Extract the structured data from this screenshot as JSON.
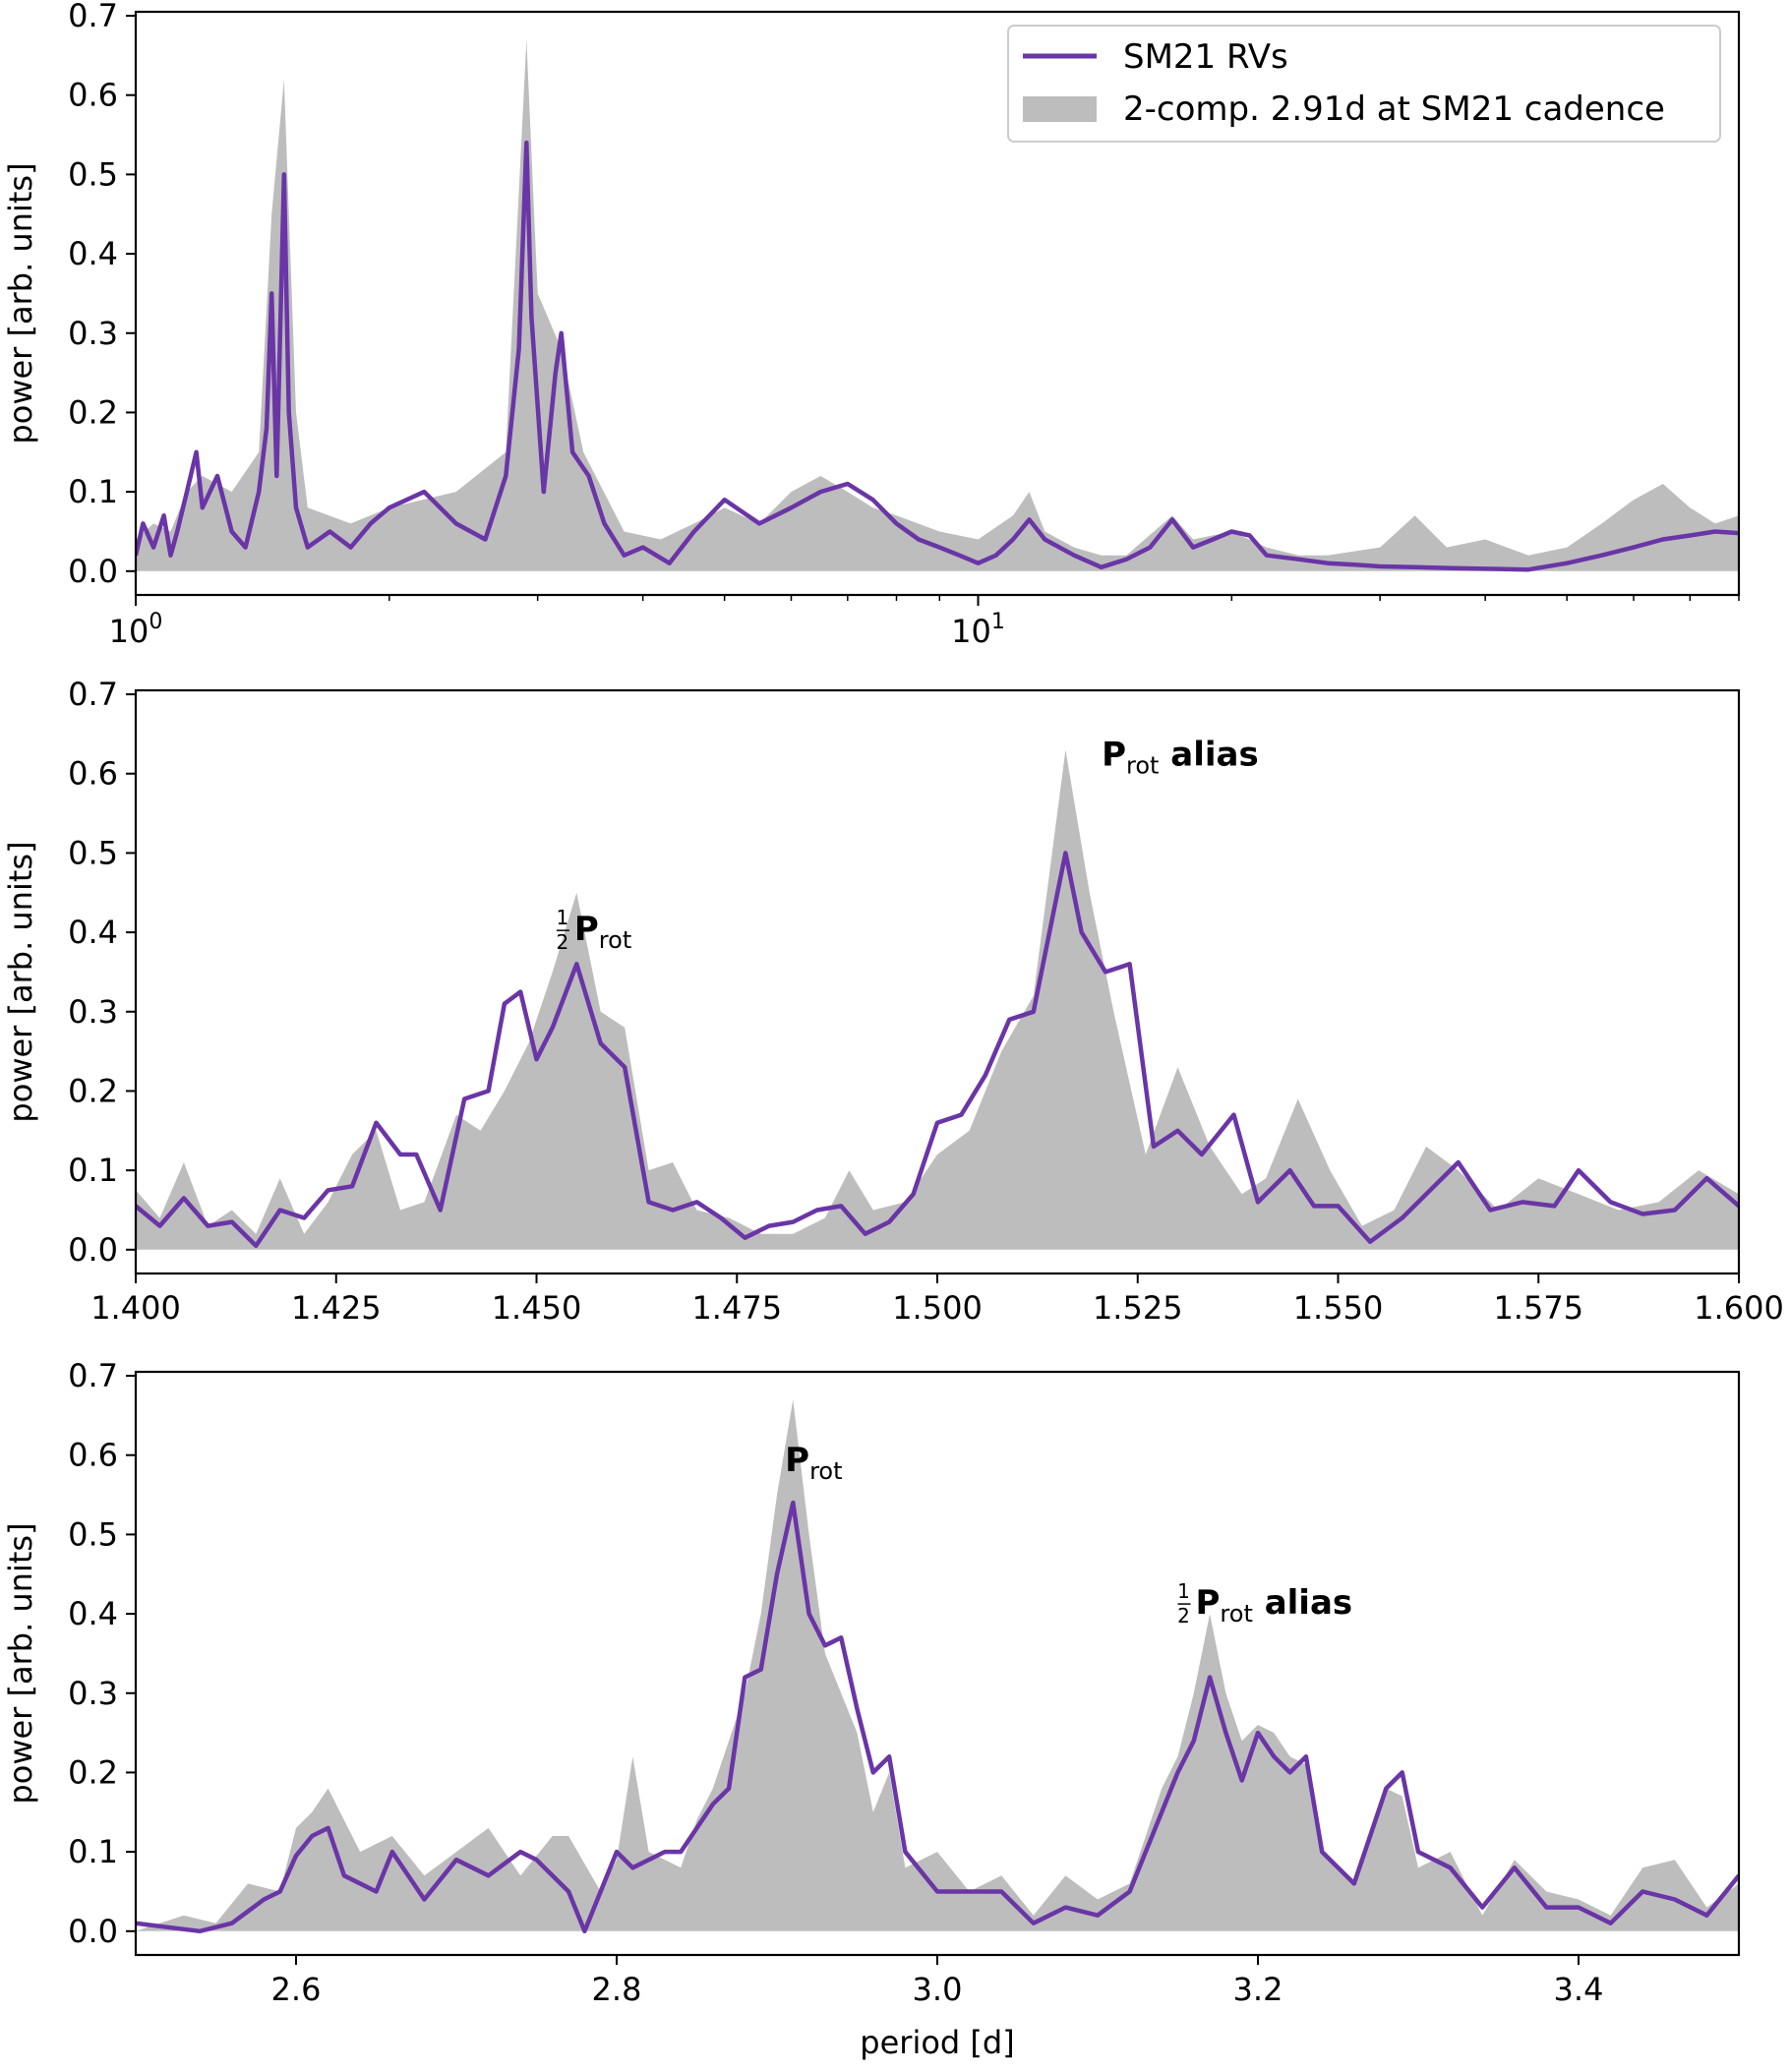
{
  "legend": {
    "line_label": "SM21 RVs",
    "fill_label": "2-comp. 2.91d at SM21 cadence",
    "line_color": "#6a35a6",
    "fill_color": "#bdbdbd"
  },
  "chart_data": [
    {
      "type": "line",
      "panel": "full periodogram",
      "xscale": "log",
      "xlim": [
        1,
        80
      ],
      "ylim": [
        -0.03,
        0.705
      ],
      "x_ticks": [
        {
          "value": 1,
          "base": "10",
          "exp": "0"
        },
        {
          "value": 10,
          "base": "10",
          "exp": "1"
        }
      ],
      "y_ticks": [
        "0.0",
        "0.1",
        "0.2",
        "0.3",
        "0.4",
        "0.5",
        "0.6",
        "0.7"
      ],
      "ylabel": "power [arb. units]",
      "xlabel": "",
      "legend_position": "upper-right",
      "series": [
        {
          "name": "SM21 RVs",
          "kind": "line",
          "x": [
            1.0,
            1.02,
            1.05,
            1.08,
            1.1,
            1.12,
            1.15,
            1.18,
            1.2,
            1.25,
            1.3,
            1.35,
            1.4,
            1.43,
            1.45,
            1.47,
            1.5,
            1.52,
            1.55,
            1.6,
            1.7,
            1.8,
            1.9,
            2.0,
            2.2,
            2.4,
            2.6,
            2.75,
            2.85,
            2.91,
            2.95,
            3.05,
            3.15,
            3.2,
            3.3,
            3.45,
            3.6,
            3.8,
            4.0,
            4.3,
            4.6,
            5.0,
            5.5,
            6.0,
            6.5,
            7.0,
            7.5,
            8.0,
            8.5,
            9.0,
            9.5,
            10.0,
            10.5,
            11.0,
            11.5,
            12.0,
            13.0,
            14.0,
            15.0,
            16.0,
            17.0,
            18.0,
            19.0,
            20.0,
            21.0,
            22.0,
            24.0,
            26.0,
            28.0,
            30.0,
            33.0,
            36.0,
            40.0,
            45.0,
            50.0,
            55.0,
            60.0,
            65.0,
            70.0,
            75.0,
            80.0
          ],
          "y": [
            0.02,
            0.06,
            0.03,
            0.07,
            0.02,
            0.05,
            0.1,
            0.15,
            0.08,
            0.12,
            0.05,
            0.03,
            0.1,
            0.18,
            0.35,
            0.12,
            0.5,
            0.2,
            0.08,
            0.03,
            0.05,
            0.03,
            0.06,
            0.08,
            0.1,
            0.06,
            0.04,
            0.12,
            0.28,
            0.54,
            0.32,
            0.1,
            0.25,
            0.3,
            0.15,
            0.12,
            0.06,
            0.02,
            0.03,
            0.01,
            0.05,
            0.09,
            0.06,
            0.08,
            0.1,
            0.11,
            0.09,
            0.06,
            0.04,
            0.03,
            0.02,
            0.01,
            0.02,
            0.04,
            0.065,
            0.04,
            0.02,
            0.005,
            0.015,
            0.03,
            0.065,
            0.03,
            0.04,
            0.05,
            0.045,
            0.02,
            0.015,
            0.01,
            0.008,
            0.006,
            0.005,
            0.004,
            0.003,
            0.002,
            0.01,
            0.02,
            0.03,
            0.04,
            0.045,
            0.05,
            0.048
          ]
        },
        {
          "name": "2-comp. 2.91d at SM21 cadence",
          "kind": "fill",
          "x": [
            1.0,
            1.05,
            1.1,
            1.15,
            1.2,
            1.3,
            1.4,
            1.45,
            1.5,
            1.55,
            1.6,
            1.8,
            2.0,
            2.4,
            2.75,
            2.91,
            3.0,
            3.2,
            3.4,
            3.8,
            4.2,
            4.6,
            5.0,
            5.5,
            6.0,
            6.5,
            7.0,
            7.5,
            8.0,
            9.0,
            10.0,
            11.0,
            11.5,
            12.0,
            13.0,
            14.0,
            15.0,
            17.0,
            18.0,
            20.0,
            22.0,
            24.0,
            26.0,
            30.0,
            33.0,
            36.0,
            40.0,
            45.0,
            50.0,
            55.0,
            60.0,
            65.0,
            70.0,
            75.0,
            80.0
          ],
          "y": [
            0.04,
            0.06,
            0.05,
            0.1,
            0.12,
            0.1,
            0.15,
            0.45,
            0.62,
            0.2,
            0.08,
            0.06,
            0.08,
            0.1,
            0.15,
            0.67,
            0.35,
            0.28,
            0.15,
            0.05,
            0.04,
            0.06,
            0.08,
            0.06,
            0.1,
            0.12,
            0.1,
            0.08,
            0.07,
            0.05,
            0.04,
            0.07,
            0.1,
            0.05,
            0.03,
            0.02,
            0.02,
            0.07,
            0.04,
            0.05,
            0.03,
            0.02,
            0.02,
            0.03,
            0.07,
            0.03,
            0.04,
            0.02,
            0.03,
            0.06,
            0.09,
            0.11,
            0.08,
            0.06,
            0.07
          ]
        }
      ]
    },
    {
      "type": "line",
      "panel": "zoom near 1.5 d",
      "xlim": [
        1.4,
        1.6
      ],
      "ylim": [
        -0.03,
        0.705
      ],
      "x_ticks": [
        "1.400",
        "1.425",
        "1.450",
        "1.475",
        "1.500",
        "1.525",
        "1.550",
        "1.575",
        "1.600"
      ],
      "y_ticks": [
        "0.0",
        "0.1",
        "0.2",
        "0.3",
        "0.4",
        "0.5",
        "0.6",
        "0.7"
      ],
      "ylabel": "power [arb. units]",
      "xlabel": "",
      "annotations": [
        {
          "text_frac_num": "1",
          "text_frac_den": "2",
          "text_main": "P",
          "text_sub": "rot",
          "text_suffix": "",
          "x": 1.4525,
          "y": 0.39
        },
        {
          "text_frac_num": "",
          "text_frac_den": "",
          "text_main": "P",
          "text_sub": "rot",
          "text_suffix": " alias",
          "x": 1.5205,
          "y": 0.61
        }
      ],
      "series": [
        {
          "name": "SM21 RVs",
          "kind": "line",
          "x": [
            1.4,
            1.403,
            1.406,
            1.409,
            1.412,
            1.415,
            1.418,
            1.421,
            1.424,
            1.427,
            1.43,
            1.433,
            1.435,
            1.438,
            1.441,
            1.444,
            1.446,
            1.448,
            1.45,
            1.452,
            1.455,
            1.458,
            1.461,
            1.464,
            1.467,
            1.47,
            1.473,
            1.476,
            1.479,
            1.482,
            1.485,
            1.488,
            1.491,
            1.494,
            1.497,
            1.5,
            1.503,
            1.506,
            1.509,
            1.512,
            1.515,
            1.516,
            1.518,
            1.521,
            1.524,
            1.527,
            1.53,
            1.533,
            1.537,
            1.54,
            1.544,
            1.547,
            1.55,
            1.554,
            1.558,
            1.561,
            1.565,
            1.569,
            1.573,
            1.577,
            1.58,
            1.584,
            1.588,
            1.592,
            1.596,
            1.6
          ],
          "y": [
            0.055,
            0.03,
            0.065,
            0.03,
            0.035,
            0.005,
            0.05,
            0.04,
            0.075,
            0.08,
            0.16,
            0.12,
            0.12,
            0.05,
            0.19,
            0.2,
            0.31,
            0.325,
            0.24,
            0.28,
            0.36,
            0.26,
            0.23,
            0.06,
            0.05,
            0.06,
            0.04,
            0.015,
            0.03,
            0.035,
            0.05,
            0.055,
            0.02,
            0.035,
            0.07,
            0.16,
            0.17,
            0.22,
            0.29,
            0.3,
            0.45,
            0.5,
            0.4,
            0.35,
            0.36,
            0.13,
            0.15,
            0.12,
            0.17,
            0.06,
            0.1,
            0.055,
            0.055,
            0.01,
            0.04,
            0.07,
            0.11,
            0.05,
            0.06,
            0.055,
            0.1,
            0.06,
            0.045,
            0.05,
            0.09,
            0.055
          ]
        },
        {
          "name": "2-comp. 2.91d at SM21 cadence",
          "kind": "fill",
          "x": [
            1.4,
            1.403,
            1.406,
            1.409,
            1.412,
            1.415,
            1.418,
            1.421,
            1.424,
            1.427,
            1.43,
            1.433,
            1.436,
            1.44,
            1.443,
            1.446,
            1.449,
            1.452,
            1.455,
            1.458,
            1.461,
            1.464,
            1.467,
            1.47,
            1.474,
            1.478,
            1.482,
            1.486,
            1.489,
            1.492,
            1.496,
            1.5,
            1.504,
            1.508,
            1.512,
            1.516,
            1.519,
            1.522,
            1.526,
            1.53,
            1.534,
            1.538,
            1.541,
            1.545,
            1.549,
            1.553,
            1.557,
            1.561,
            1.565,
            1.57,
            1.575,
            1.58,
            1.585,
            1.59,
            1.595,
            1.6
          ],
          "y": [
            0.075,
            0.04,
            0.11,
            0.03,
            0.05,
            0.02,
            0.09,
            0.02,
            0.06,
            0.12,
            0.15,
            0.05,
            0.06,
            0.17,
            0.15,
            0.2,
            0.26,
            0.35,
            0.45,
            0.3,
            0.28,
            0.1,
            0.11,
            0.05,
            0.04,
            0.02,
            0.02,
            0.04,
            0.1,
            0.05,
            0.06,
            0.12,
            0.15,
            0.25,
            0.32,
            0.63,
            0.45,
            0.3,
            0.12,
            0.23,
            0.13,
            0.07,
            0.09,
            0.19,
            0.1,
            0.03,
            0.05,
            0.13,
            0.1,
            0.05,
            0.09,
            0.07,
            0.05,
            0.06,
            0.1,
            0.07
          ]
        }
      ]
    },
    {
      "type": "line",
      "panel": "zoom near 2.9 d",
      "xlim": [
        2.5,
        3.5
      ],
      "ylim": [
        -0.03,
        0.705
      ],
      "x_ticks": [
        "2.6",
        "2.8",
        "3.0",
        "3.2",
        "3.4"
      ],
      "y_ticks": [
        "0.0",
        "0.1",
        "0.2",
        "0.3",
        "0.4",
        "0.5",
        "0.6",
        "0.7"
      ],
      "ylabel": "power [arb. units]",
      "xlabel": "period [d]",
      "annotations": [
        {
          "text_frac_num": "",
          "text_frac_den": "",
          "text_main": "P",
          "text_sub": "rot",
          "text_suffix": "",
          "x": 2.905,
          "y": 0.58
        },
        {
          "text_frac_num": "1",
          "text_frac_den": "2",
          "text_main": "P",
          "text_sub": "rot",
          "text_suffix": " alias",
          "x": 3.15,
          "y": 0.4
        }
      ],
      "series": [
        {
          "name": "SM21 RVs",
          "kind": "line",
          "x": [
            2.5,
            2.52,
            2.54,
            2.56,
            2.58,
            2.59,
            2.6,
            2.61,
            2.62,
            2.63,
            2.65,
            2.66,
            2.68,
            2.7,
            2.72,
            2.74,
            2.75,
            2.77,
            2.78,
            2.8,
            2.81,
            2.83,
            2.84,
            2.86,
            2.87,
            2.88,
            2.89,
            2.9,
            2.91,
            2.92,
            2.93,
            2.94,
            2.95,
            2.96,
            2.97,
            2.98,
            3.0,
            3.02,
            3.04,
            3.06,
            3.08,
            3.1,
            3.12,
            3.14,
            3.15,
            3.16,
            3.17,
            3.18,
            3.19,
            3.2,
            3.21,
            3.22,
            3.23,
            3.24,
            3.26,
            3.28,
            3.29,
            3.3,
            3.32,
            3.34,
            3.36,
            3.38,
            3.4,
            3.42,
            3.44,
            3.46,
            3.48,
            3.5
          ],
          "y": [
            0.01,
            0.005,
            0.0,
            0.01,
            0.04,
            0.05,
            0.095,
            0.12,
            0.13,
            0.07,
            0.05,
            0.1,
            0.04,
            0.09,
            0.07,
            0.1,
            0.09,
            0.05,
            0.0,
            0.1,
            0.08,
            0.1,
            0.1,
            0.16,
            0.18,
            0.32,
            0.33,
            0.45,
            0.54,
            0.4,
            0.36,
            0.37,
            0.28,
            0.2,
            0.22,
            0.1,
            0.05,
            0.05,
            0.05,
            0.01,
            0.03,
            0.02,
            0.05,
            0.15,
            0.2,
            0.24,
            0.32,
            0.25,
            0.19,
            0.25,
            0.22,
            0.2,
            0.22,
            0.1,
            0.06,
            0.18,
            0.2,
            0.1,
            0.08,
            0.03,
            0.08,
            0.03,
            0.03,
            0.01,
            0.05,
            0.04,
            0.02,
            0.07
          ]
        },
        {
          "name": "2-comp. 2.91d at SM21 cadence",
          "kind": "fill",
          "x": [
            2.5,
            2.53,
            2.55,
            2.57,
            2.59,
            2.6,
            2.61,
            2.62,
            2.64,
            2.66,
            2.68,
            2.7,
            2.72,
            2.74,
            2.76,
            2.77,
            2.79,
            2.8,
            2.81,
            2.82,
            2.84,
            2.85,
            2.86,
            2.88,
            2.89,
            2.9,
            2.91,
            2.92,
            2.93,
            2.94,
            2.95,
            2.96,
            2.97,
            2.98,
            3.0,
            3.02,
            3.04,
            3.06,
            3.08,
            3.1,
            3.12,
            3.14,
            3.15,
            3.16,
            3.17,
            3.18,
            3.19,
            3.2,
            3.21,
            3.22,
            3.23,
            3.24,
            3.26,
            3.28,
            3.29,
            3.3,
            3.32,
            3.34,
            3.36,
            3.38,
            3.4,
            3.42,
            3.44,
            3.46,
            3.48,
            3.5
          ],
          "y": [
            0.0,
            0.02,
            0.01,
            0.06,
            0.05,
            0.13,
            0.15,
            0.18,
            0.1,
            0.12,
            0.07,
            0.1,
            0.13,
            0.07,
            0.12,
            0.12,
            0.05,
            0.09,
            0.22,
            0.1,
            0.08,
            0.14,
            0.18,
            0.3,
            0.4,
            0.55,
            0.67,
            0.5,
            0.35,
            0.3,
            0.25,
            0.15,
            0.2,
            0.08,
            0.1,
            0.05,
            0.07,
            0.02,
            0.07,
            0.04,
            0.06,
            0.18,
            0.22,
            0.3,
            0.4,
            0.3,
            0.24,
            0.26,
            0.25,
            0.22,
            0.21,
            0.1,
            0.06,
            0.18,
            0.17,
            0.08,
            0.1,
            0.02,
            0.09,
            0.05,
            0.04,
            0.02,
            0.08,
            0.09,
            0.03,
            0.06
          ]
        }
      ]
    }
  ]
}
